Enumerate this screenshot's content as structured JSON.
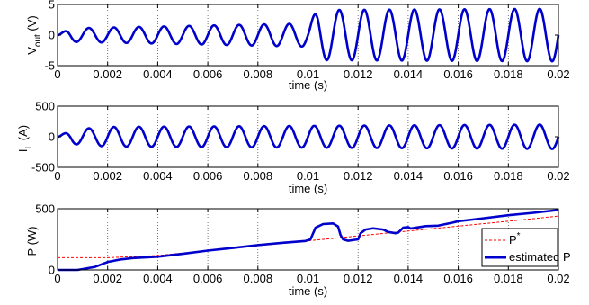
{
  "chart_data": [
    {
      "type": "line",
      "xlabel": "time (s)",
      "ylabel": "V",
      "ylabel_sub": "out",
      "ylabel_unit": " (V)",
      "xlim": [
        0,
        0.02
      ],
      "ylim": [
        -5,
        5
      ],
      "xticks": [
        "0",
        "0.002",
        "0.004",
        "0.006",
        "0.008",
        "0.01",
        "0.012",
        "0.014",
        "0.016",
        "0.018",
        "0.02"
      ],
      "yticks": [
        "5",
        "0",
        "-5"
      ],
      "grid": "vertical dotted",
      "series": [
        {
          "color": "#0000cc",
          "waveform": "sine",
          "frequency_hz": 1000,
          "envelope": [
            {
              "t": 0.0,
              "amp": 0.0
            },
            {
              "t": 0.0005,
              "amp": 1.1
            },
            {
              "t": 0.01,
              "amp": 1.9
            },
            {
              "t": 0.0104,
              "amp": 4.1
            },
            {
              "t": 0.02,
              "amp": 4.3
            }
          ]
        }
      ]
    },
    {
      "type": "line",
      "xlabel": "time (s)",
      "ylabel": "I",
      "ylabel_sub": "L",
      "ylabel_unit": " (A)",
      "xlim": [
        0,
        0.02
      ],
      "ylim": [
        -500,
        500
      ],
      "xticks": [
        "0",
        "0.002",
        "0.004",
        "0.006",
        "0.008",
        "0.01",
        "0.012",
        "0.014",
        "0.016",
        "0.018",
        "0.02"
      ],
      "yticks": [
        "500",
        "0",
        "-500"
      ],
      "grid": "vertical dotted",
      "series": [
        {
          "color": "#0000cc",
          "waveform": "sine",
          "frequency_hz": 1000,
          "envelope": [
            {
              "t": 0.0,
              "amp": 0.0
            },
            {
              "t": 0.0006,
              "amp": 120
            },
            {
              "t": 0.002,
              "amp": 160
            },
            {
              "t": 0.02,
              "amp": 200
            }
          ]
        }
      ]
    },
    {
      "type": "line",
      "xlabel": "time (s)",
      "ylabel": "P (W)",
      "xlim": [
        0,
        0.02
      ],
      "ylim": [
        0,
        500
      ],
      "xticks": [
        "0",
        "0.002",
        "0.004",
        "0.006",
        "0.008",
        "0.01",
        "0.012",
        "0.014",
        "0.016",
        "0.018",
        "0.02"
      ],
      "yticks": [
        "500",
        "0"
      ],
      "grid": "vertical dotted",
      "legend": {
        "position": "right",
        "entries": [
          {
            "label": "P",
            "superscript": "*",
            "color": "#ff0000",
            "style": "dashed"
          },
          {
            "label": "estimated P",
            "color": "#0000cc",
            "style": "solid"
          }
        ]
      },
      "series": [
        {
          "name": "P*",
          "color": "#ff0000",
          "style": "dashed",
          "x": [
            0,
            0.002,
            0.004,
            0.006,
            0.008,
            0.01,
            0.012,
            0.014,
            0.016,
            0.018,
            0.02
          ],
          "y": [
            100,
            100,
            118,
            158,
            198,
            238,
            278,
            318,
            358,
            398,
            440
          ]
        },
        {
          "name": "estimated P",
          "color": "#0000cc",
          "style": "solid",
          "x": [
            0,
            0.0008,
            0.0015,
            0.002,
            0.0025,
            0.003,
            0.004,
            0.005,
            0.006,
            0.007,
            0.008,
            0.009,
            0.0099,
            0.0101,
            0.0103,
            0.0106,
            0.011,
            0.0112,
            0.0113,
            0.0114,
            0.0116,
            0.012,
            0.0121,
            0.0123,
            0.0126,
            0.013,
            0.0132,
            0.0135,
            0.0136,
            0.0138,
            0.014,
            0.0141,
            0.0143,
            0.0147,
            0.0152,
            0.0155,
            0.0158,
            0.016,
            0.017,
            0.018,
            0.019,
            0.02
          ],
          "y": [
            0,
            0,
            25,
            65,
            85,
            97,
            108,
            132,
            158,
            180,
            203,
            222,
            237,
            250,
            345,
            375,
            380,
            355,
            285,
            250,
            238,
            250,
            300,
            330,
            340,
            330,
            310,
            300,
            305,
            345,
            350,
            338,
            345,
            358,
            362,
            375,
            388,
            398,
            422,
            447,
            467,
            490
          ]
        }
      ]
    }
  ]
}
